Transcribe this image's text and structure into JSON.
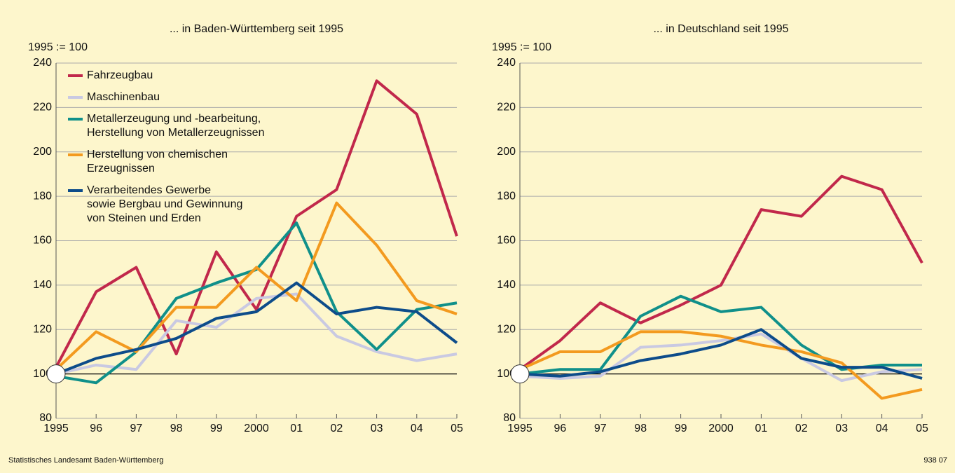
{
  "chart_data": [
    {
      "type": "line",
      "title": "... in Baden-Württemberg seit 1995",
      "ylabel": "1995 := 100",
      "categories": [
        "1995",
        "96",
        "97",
        "98",
        "99",
        "2000",
        "01",
        "02",
        "03",
        "04",
        "05"
      ],
      "ylim": [
        80,
        240
      ],
      "yticks": [
        80,
        100,
        120,
        140,
        160,
        180,
        200,
        220,
        240
      ],
      "grid": true,
      "baseline": 100,
      "legend": "upper left",
      "series": [
        {
          "name": "Fahrzeugbau",
          "color": "#c1284b",
          "values": [
            103,
            137,
            148,
            109,
            155,
            129,
            171,
            183,
            232,
            217,
            162
          ]
        },
        {
          "name": "Maschinenbau",
          "color": "#c9c9e2",
          "values": [
            100,
            104,
            102,
            124,
            121,
            134,
            136,
            117,
            110,
            106,
            109
          ]
        },
        {
          "name": "Metallerzeugung und -bearbeitung,\nHerstellung von Metallerzeugnissen",
          "color": "#10908a",
          "values": [
            99,
            96,
            110,
            134,
            141,
            147,
            168,
            128,
            111,
            129,
            132
          ]
        },
        {
          "name": "Herstellung von chemischen\nErzeugnissen",
          "color": "#f39a1f",
          "values": [
            102,
            119,
            110,
            130,
            130,
            148,
            133,
            177,
            158,
            133,
            127
          ]
        },
        {
          "name": "Verarbeitendes Gewerbe\nsowie Bergbau und Gewinnung\nvon Steinen und Erden",
          "color": "#0d4c8a",
          "values": [
            100,
            107,
            111,
            116,
            125,
            128,
            141,
            127,
            130,
            128,
            114
          ]
        }
      ]
    },
    {
      "type": "line",
      "title": "... in Deutschland seit 1995",
      "ylabel": "1995 := 100",
      "categories": [
        "1995",
        "96",
        "97",
        "98",
        "99",
        "2000",
        "01",
        "02",
        "03",
        "04",
        "05"
      ],
      "ylim": [
        80,
        240
      ],
      "yticks": [
        80,
        100,
        120,
        140,
        160,
        180,
        200,
        220,
        240
      ],
      "grid": true,
      "baseline": 100,
      "series": [
        {
          "color": "#c1284b",
          "values": [
            102,
            115,
            132,
            123,
            131,
            140,
            174,
            171,
            189,
            183,
            150
          ]
        },
        {
          "color": "#c9c9e2",
          "values": [
            99,
            98,
            99,
            112,
            113,
            115,
            118,
            107,
            97,
            101,
            102
          ]
        },
        {
          "color": "#10908a",
          "values": [
            100,
            102,
            102,
            126,
            135,
            128,
            130,
            113,
            102,
            104,
            104
          ]
        },
        {
          "color": "#f39a1f",
          "values": [
            102,
            110,
            110,
            119,
            119,
            117,
            113,
            110,
            105,
            89,
            93
          ]
        },
        {
          "color": "#0d4c8a",
          "values": [
            100,
            99,
            101,
            106,
            109,
            113,
            120,
            107,
            103,
            103,
            98
          ]
        }
      ]
    }
  ],
  "source": "Statistisches Landesamt Baden-Württemberg",
  "code": "938 07"
}
